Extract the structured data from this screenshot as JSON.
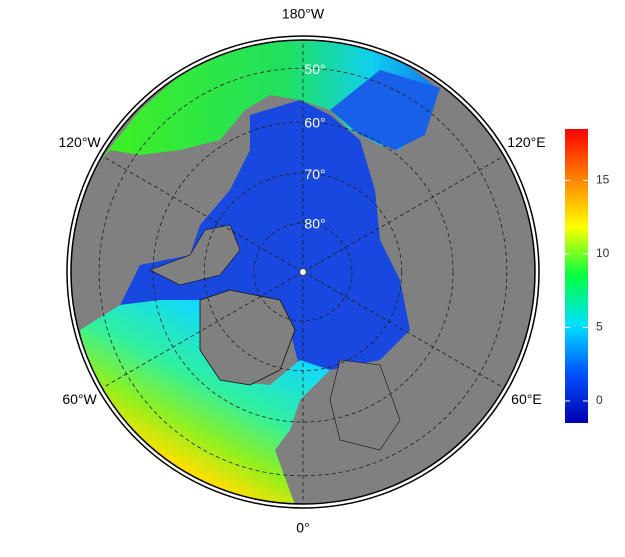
{
  "map": {
    "projection": "north polar stereographic",
    "meridians": [
      {
        "value": 180,
        "label": "180°W"
      },
      {
        "value": -120,
        "label": "120°W"
      },
      {
        "value": 120,
        "label": "120°E"
      },
      {
        "value": -60,
        "label": "60°W"
      },
      {
        "value": 60,
        "label": "60°E"
      },
      {
        "value": 0,
        "label": "0°"
      }
    ],
    "parallels": [
      {
        "value": 50,
        "label": "50°"
      },
      {
        "value": 60,
        "label": "60°"
      },
      {
        "value": 70,
        "label": "70°"
      },
      {
        "value": 80,
        "label": "80°"
      }
    ]
  },
  "colorbar": {
    "lim": [
      -1.5,
      18.5
    ],
    "ticks": [
      0,
      5,
      10,
      15
    ],
    "colors": [
      "#0000b0",
      "#0050ff",
      "#00e0ff",
      "#00ff40",
      "#ffff00",
      "#ff8000",
      "#ff0000"
    ]
  }
}
